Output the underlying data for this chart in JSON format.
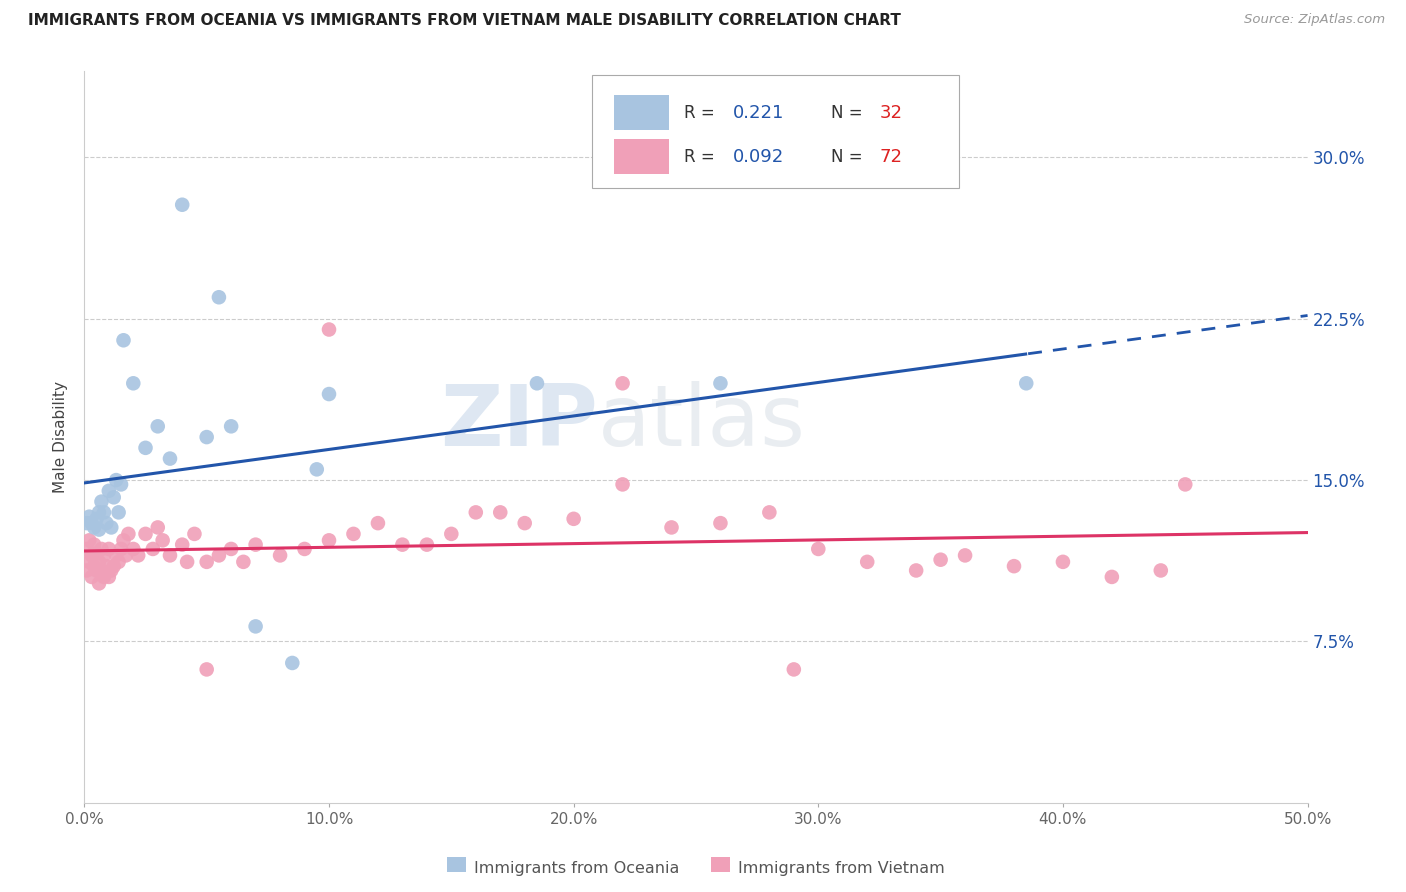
{
  "title": "IMMIGRANTS FROM OCEANIA VS IMMIGRANTS FROM VIETNAM MALE DISABILITY CORRELATION CHART",
  "source": "Source: ZipAtlas.com",
  "ylabel": "Male Disability",
  "xlim": [
    0.0,
    0.5
  ],
  "ylim": [
    0.0,
    0.34
  ],
  "xticks": [
    0.0,
    0.1,
    0.2,
    0.3,
    0.4,
    0.5
  ],
  "xticklabels": [
    "0.0%",
    "10.0%",
    "20.0%",
    "30.0%",
    "40.0%",
    "50.0%"
  ],
  "yticks": [
    0.075,
    0.15,
    0.225,
    0.3
  ],
  "yticklabels": [
    "7.5%",
    "15.0%",
    "22.5%",
    "30.0%"
  ],
  "legend1_R": "0.221",
  "legend1_N": "32",
  "legend2_R": "0.092",
  "legend2_N": "72",
  "blue_color": "#a8c4e0",
  "pink_color": "#f0a0b8",
  "blue_line_color": "#2255aa",
  "pink_line_color": "#dd3366",
  "legend_R_color": "#2255aa",
  "legend_N_color": "#dd2222",
  "watermark_color": "#c8d8ea",
  "oceania_x": [
    0.001,
    0.002,
    0.003,
    0.004,
    0.005,
    0.006,
    0.006,
    0.007,
    0.008,
    0.009,
    0.01,
    0.011,
    0.012,
    0.013,
    0.014,
    0.015,
    0.016,
    0.02,
    0.025,
    0.03,
    0.035,
    0.04,
    0.05,
    0.055,
    0.06,
    0.07,
    0.085,
    0.095,
    0.1,
    0.185,
    0.26,
    0.385
  ],
  "oceania_y": [
    0.13,
    0.133,
    0.13,
    0.128,
    0.132,
    0.135,
    0.127,
    0.14,
    0.135,
    0.13,
    0.145,
    0.128,
    0.142,
    0.15,
    0.135,
    0.148,
    0.215,
    0.195,
    0.165,
    0.175,
    0.16,
    0.278,
    0.17,
    0.235,
    0.175,
    0.082,
    0.065,
    0.155,
    0.19,
    0.195,
    0.195,
    0.195
  ],
  "vietnam_x": [
    0.001,
    0.001,
    0.002,
    0.002,
    0.003,
    0.003,
    0.004,
    0.004,
    0.005,
    0.005,
    0.006,
    0.006,
    0.007,
    0.007,
    0.008,
    0.008,
    0.009,
    0.01,
    0.01,
    0.011,
    0.012,
    0.013,
    0.014,
    0.015,
    0.016,
    0.017,
    0.018,
    0.02,
    0.022,
    0.025,
    0.028,
    0.03,
    0.032,
    0.035,
    0.04,
    0.042,
    0.045,
    0.05,
    0.055,
    0.06,
    0.065,
    0.07,
    0.08,
    0.09,
    0.1,
    0.11,
    0.12,
    0.13,
    0.14,
    0.15,
    0.16,
    0.17,
    0.18,
    0.2,
    0.22,
    0.24,
    0.26,
    0.28,
    0.3,
    0.32,
    0.34,
    0.35,
    0.36,
    0.38,
    0.4,
    0.42,
    0.44,
    0.05,
    0.1,
    0.22,
    0.29,
    0.45
  ],
  "vietnam_y": [
    0.108,
    0.118,
    0.112,
    0.122,
    0.105,
    0.115,
    0.11,
    0.12,
    0.108,
    0.116,
    0.102,
    0.112,
    0.108,
    0.118,
    0.105,
    0.115,
    0.11,
    0.118,
    0.105,
    0.108,
    0.11,
    0.115,
    0.112,
    0.118,
    0.122,
    0.115,
    0.125,
    0.118,
    0.115,
    0.125,
    0.118,
    0.128,
    0.122,
    0.115,
    0.12,
    0.112,
    0.125,
    0.112,
    0.115,
    0.118,
    0.112,
    0.12,
    0.115,
    0.118,
    0.122,
    0.125,
    0.13,
    0.12,
    0.12,
    0.125,
    0.135,
    0.135,
    0.13,
    0.132,
    0.195,
    0.128,
    0.13,
    0.135,
    0.118,
    0.112,
    0.108,
    0.113,
    0.115,
    0.11,
    0.112,
    0.105,
    0.108,
    0.062,
    0.22,
    0.148,
    0.062,
    0.148
  ]
}
